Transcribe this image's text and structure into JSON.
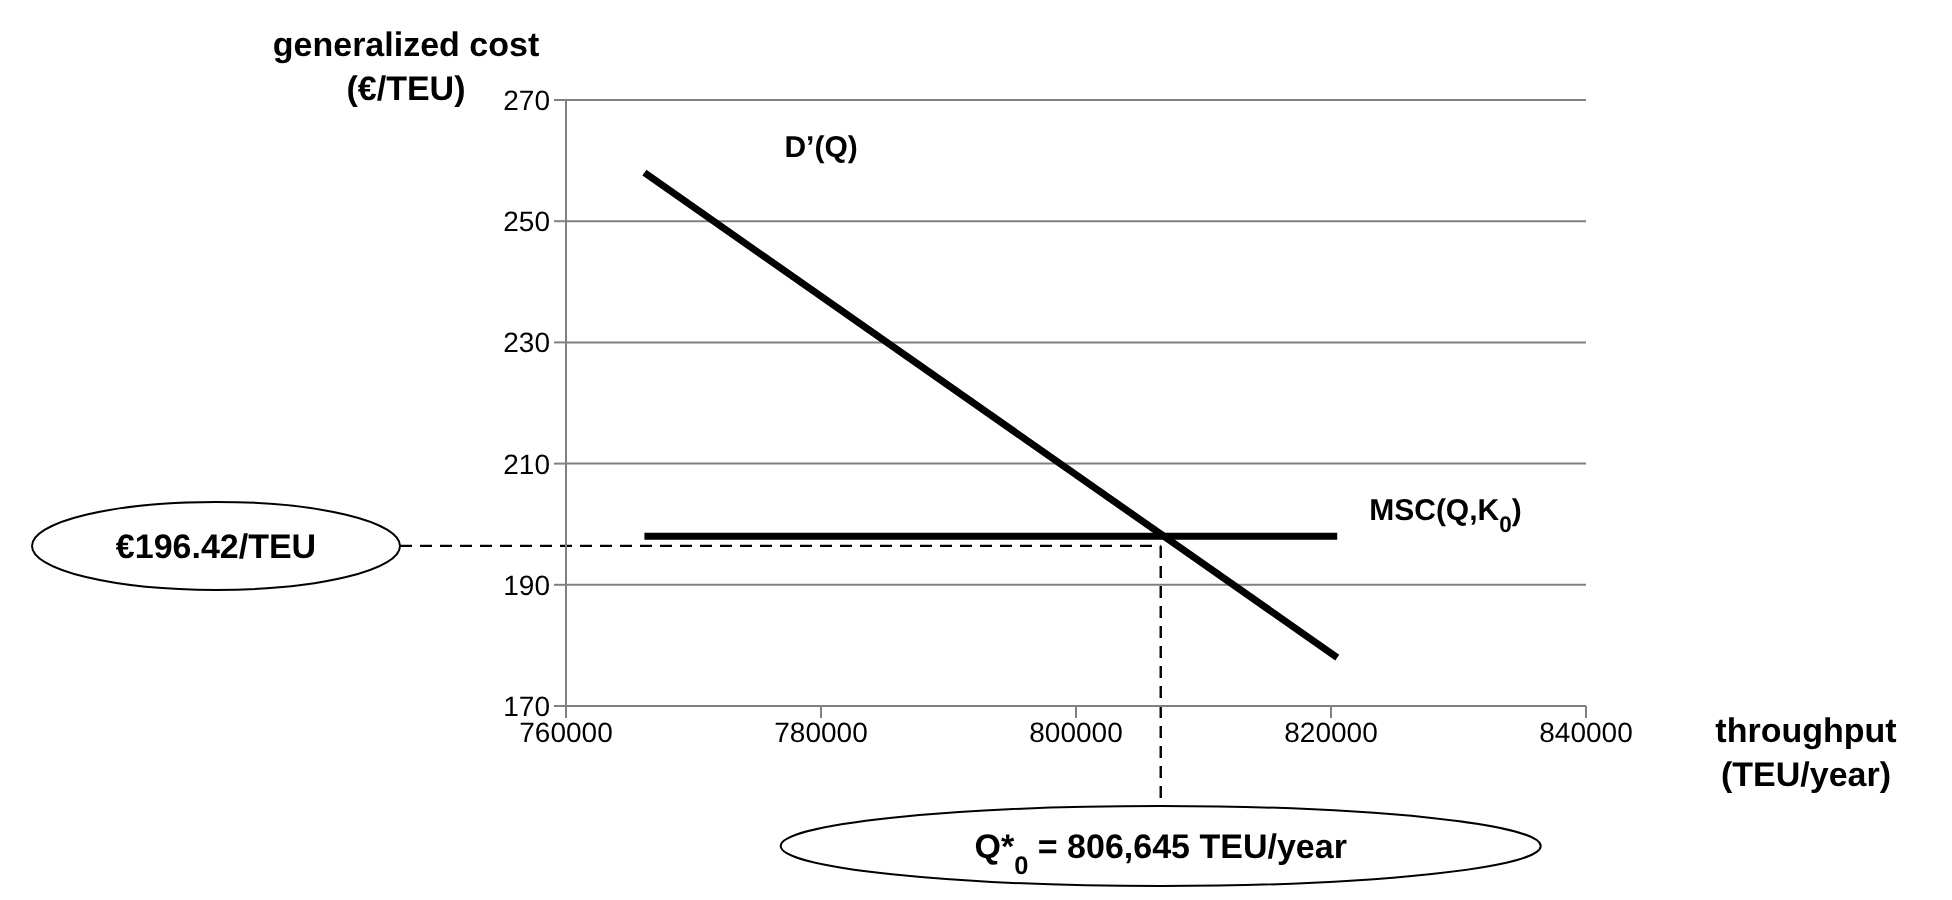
{
  "chart_data": {
    "type": "line",
    "xlabel": "throughput (TEU/year)",
    "ylabel": "generalized cost (€/TEU)",
    "series": [
      {
        "name": "D’(Q)",
        "color": "#000000",
        "values": [
          258,
          178
        ]
      },
      {
        "name": "MSC(Q,K$_{0}$)",
        "color": "#000000",
        "values": [
          198,
          198
        ]
      }
    ],
    "x": [
      766150,
      820490
    ],
    "xlim": [
      760000,
      840000
    ],
    "xticks": [
      760000,
      780000,
      800000,
      820000,
      840000
    ],
    "ylim": [
      170,
      270
    ],
    "yticks": [
      170,
      190,
      210,
      230,
      250,
      270
    ],
    "ref_lines": [
      {
        "axis": "y",
        "value": 196.42,
        "label": "€196.42/TEU",
        "line_style": "dashed",
        "color": "#000000"
      },
      {
        "axis": "x",
        "value": 806645,
        "label": "Q*$_{0}$ = 806,645 TEU/year",
        "line_style": "dashed",
        "color": "#000000"
      }
    ],
    "grid": "y",
    "marker": "none",
    "line_style": "solid",
    "legend": false
  }
}
